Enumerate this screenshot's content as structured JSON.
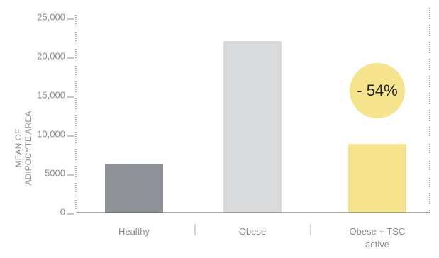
{
  "chart_data": {
    "type": "bar",
    "y_label": "MEAN OF ADIPOCYTE AREA",
    "categories": [
      "Healthy",
      "Obese",
      "Obese + TSC active"
    ],
    "values": [
      6200,
      22000,
      8800
    ],
    "colors": [
      "#8e9196",
      "#d9dadc",
      "#f5e38e"
    ],
    "ylim": [
      0,
      25000
    ],
    "yticks": [
      0,
      5000,
      {
        "value": 10000,
        "label": "10,000"
      },
      {
        "value": 15000,
        "label": "15,000"
      },
      {
        "value": 20000,
        "label": "20,000"
      },
      {
        "value": 25000,
        "label": "25,000"
      }
    ],
    "annotation": {
      "text": "- 54%",
      "color": "#f5e38e"
    }
  }
}
